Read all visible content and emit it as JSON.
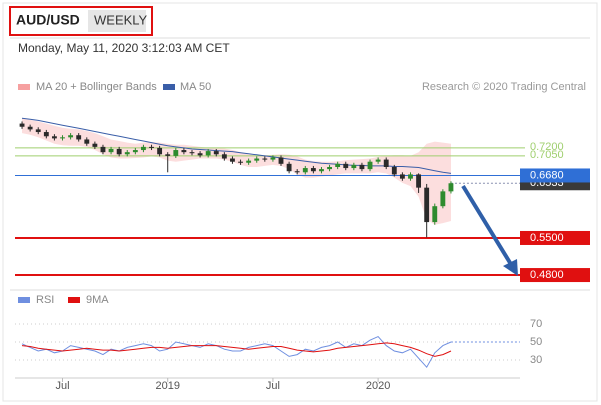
{
  "chart_data": {
    "type": "candlestick",
    "title": "AUD/USD",
    "timeframe": "WEEKLY",
    "subtitle": "Monday, May 11, 2020 3:12:03 AM CET",
    "source": "Research © 2020 Trading Central",
    "categories": [
      null,
      null,
      null,
      null,
      null,
      "Jul",
      null,
      null,
      null,
      null,
      null,
      null,
      null,
      null,
      null,
      null,
      null,
      null,
      "2019",
      null,
      null,
      null,
      null,
      null,
      null,
      null,
      null,
      null,
      null,
      null,
      null,
      "Jul",
      null,
      null,
      null,
      null,
      null,
      null,
      null,
      null,
      null,
      null,
      null,
      null,
      "2020",
      null,
      null,
      null,
      null,
      null,
      null,
      null,
      null,
      null
    ],
    "open": [
      0.766,
      0.76,
      0.755,
      0.75,
      0.742,
      0.738,
      0.74,
      0.744,
      0.736,
      0.728,
      0.722,
      0.712,
      0.718,
      0.708,
      0.712,
      0.716,
      0.722,
      0.72,
      0.708,
      0.705,
      0.716,
      0.712,
      0.71,
      0.706,
      0.714,
      0.708,
      0.7,
      0.694,
      0.692,
      0.696,
      0.7,
      0.698,
      0.702,
      0.69,
      0.676,
      0.674,
      0.682,
      0.676,
      0.68,
      0.684,
      0.69,
      0.682,
      0.688,
      0.68,
      0.694,
      0.698,
      0.684,
      0.67,
      0.662,
      0.67,
      0.645,
      0.58,
      0.61,
      0.638
    ],
    "high": [
      0.77,
      0.764,
      0.759,
      0.754,
      0.746,
      0.744,
      0.748,
      0.748,
      0.74,
      0.732,
      0.726,
      0.722,
      0.722,
      0.716,
      0.72,
      0.726,
      0.726,
      0.724,
      0.712,
      0.72,
      0.72,
      0.716,
      0.714,
      0.718,
      0.718,
      0.712,
      0.704,
      0.698,
      0.7,
      0.704,
      0.704,
      0.706,
      0.706,
      0.694,
      0.68,
      0.686,
      0.686,
      0.684,
      0.688,
      0.694,
      0.694,
      0.692,
      0.692,
      0.698,
      0.702,
      0.702,
      0.688,
      0.674,
      0.674,
      0.672,
      0.652,
      0.615,
      0.642,
      0.657
    ],
    "low": [
      0.756,
      0.751,
      0.746,
      0.738,
      0.734,
      0.734,
      0.736,
      0.732,
      0.724,
      0.718,
      0.708,
      0.708,
      0.704,
      0.704,
      0.708,
      0.712,
      0.716,
      0.704,
      0.674,
      0.701,
      0.708,
      0.706,
      0.702,
      0.702,
      0.704,
      0.696,
      0.69,
      0.688,
      0.688,
      0.692,
      0.694,
      0.694,
      0.686,
      0.672,
      0.67,
      0.67,
      0.672,
      0.672,
      0.676,
      0.68,
      0.678,
      0.678,
      0.676,
      0.676,
      0.69,
      0.68,
      0.666,
      0.658,
      0.658,
      0.635,
      0.551,
      0.575,
      0.606,
      0.634
    ],
    "close": [
      0.76,
      0.755,
      0.75,
      0.742,
      0.738,
      0.74,
      0.744,
      0.736,
      0.728,
      0.722,
      0.712,
      0.718,
      0.708,
      0.712,
      0.716,
      0.722,
      0.72,
      0.708,
      0.705,
      0.716,
      0.712,
      0.71,
      0.706,
      0.714,
      0.708,
      0.7,
      0.694,
      0.692,
      0.696,
      0.7,
      0.698,
      0.702,
      0.69,
      0.676,
      0.674,
      0.682,
      0.676,
      0.68,
      0.684,
      0.69,
      0.682,
      0.688,
      0.68,
      0.694,
      0.698,
      0.684,
      0.67,
      0.662,
      0.67,
      0.645,
      0.58,
      0.61,
      0.638,
      0.6533
    ],
    "up_color": "#2e8b2e",
    "down_color": "#2a2a2a",
    "bands": {
      "name": "MA 20 + Bollinger Bands",
      "color": "#f6a0a0",
      "upper": [
        0.776,
        0.773,
        0.77,
        0.766,
        0.762,
        0.758,
        0.756,
        0.755,
        0.752,
        0.748,
        0.742,
        0.736,
        0.733,
        0.73,
        0.728,
        0.73,
        0.731,
        0.73,
        0.728,
        0.726,
        0.726,
        0.724,
        0.722,
        0.72,
        0.72,
        0.719,
        0.716,
        0.712,
        0.708,
        0.706,
        0.706,
        0.707,
        0.708,
        0.707,
        0.704,
        0.698,
        0.695,
        0.694,
        0.694,
        0.695,
        0.697,
        0.698,
        0.699,
        0.7,
        0.703,
        0.705,
        0.706,
        0.706,
        0.705,
        0.712,
        0.728,
        0.732,
        0.73,
        0.728
      ],
      "lower": [
        0.748,
        0.745,
        0.74,
        0.734,
        0.728,
        0.725,
        0.724,
        0.724,
        0.722,
        0.716,
        0.708,
        0.702,
        0.7,
        0.7,
        0.701,
        0.702,
        0.704,
        0.702,
        0.696,
        0.694,
        0.696,
        0.698,
        0.7,
        0.7,
        0.7,
        0.698,
        0.694,
        0.688,
        0.684,
        0.684,
        0.686,
        0.688,
        0.686,
        0.68,
        0.67,
        0.664,
        0.664,
        0.666,
        0.668,
        0.67,
        0.672,
        0.672,
        0.672,
        0.672,
        0.674,
        0.672,
        0.664,
        0.654,
        0.648,
        0.628,
        0.585,
        0.575,
        0.578,
        0.582
      ]
    },
    "series": [
      {
        "name": "MA 50",
        "color": "#3a5ea8",
        "values": [
          0.776,
          0.774,
          0.772,
          0.769,
          0.766,
          0.763,
          0.76,
          0.757,
          0.754,
          0.751,
          0.748,
          0.745,
          0.742,
          0.739,
          0.736,
          0.733,
          0.73,
          0.727,
          0.724,
          0.722,
          0.72,
          0.718,
          0.717,
          0.716,
          0.715,
          0.714,
          0.713,
          0.711,
          0.709,
          0.707,
          0.705,
          0.703,
          0.701,
          0.699,
          0.697,
          0.695,
          0.693,
          0.691,
          0.69,
          0.689,
          0.688,
          0.687,
          0.687,
          0.686,
          0.686,
          0.686,
          0.685,
          0.685,
          0.684,
          0.683,
          0.68,
          0.677,
          0.674,
          0.672
        ]
      }
    ],
    "levels": [
      {
        "value": 0.72,
        "label": "0.7200",
        "color": "#9fcf6e",
        "kind": "text"
      },
      {
        "value": 0.705,
        "label": "0.7050",
        "color": "#9fcf6e",
        "kind": "text"
      },
      {
        "value": 0.6533,
        "label": "0.6533",
        "color": "#3a3a3a",
        "kind": "last"
      },
      {
        "value": 0.668,
        "label": "0.6680",
        "color": "#2f6fd6",
        "kind": "badge"
      },
      {
        "value": 0.55,
        "label": "0.5500",
        "color": "#e01010",
        "kind": "badge"
      },
      {
        "value": 0.48,
        "label": "0.4800",
        "color": "#e01010",
        "kind": "badge"
      }
    ],
    "ylim": [
      0.465,
      0.886
    ],
    "rsi": {
      "ylim": [
        10,
        90
      ],
      "yticks": [
        70,
        50,
        30
      ],
      "series": [
        {
          "name": "RSI",
          "color": "#6f8fe0",
          "values": [
            48,
            44,
            40,
            42,
            38,
            40,
            46,
            44,
            42,
            40,
            36,
            42,
            40,
            44,
            46,
            48,
            46,
            40,
            42,
            50,
            48,
            46,
            44,
            48,
            46,
            42,
            40,
            40,
            44,
            46,
            48,
            46,
            40,
            34,
            36,
            42,
            40,
            44,
            46,
            50,
            44,
            48,
            46,
            52,
            56,
            46,
            40,
            38,
            42,
            32,
            22,
            38,
            46,
            50
          ]
        },
        {
          "name": "9MA",
          "color": "#e01010",
          "values": [
            46,
            45,
            43,
            42,
            41,
            40,
            41,
            42,
            43,
            42,
            41,
            41,
            40,
            41,
            42,
            43,
            44,
            44,
            43,
            44,
            45,
            46,
            46,
            46,
            46,
            45,
            44,
            43,
            42,
            43,
            44,
            45,
            45,
            43,
            41,
            40,
            39,
            40,
            41,
            43,
            44,
            45,
            46,
            47,
            48,
            49,
            48,
            46,
            44,
            41,
            37,
            34,
            36,
            40
          ]
        }
      ]
    }
  }
}
